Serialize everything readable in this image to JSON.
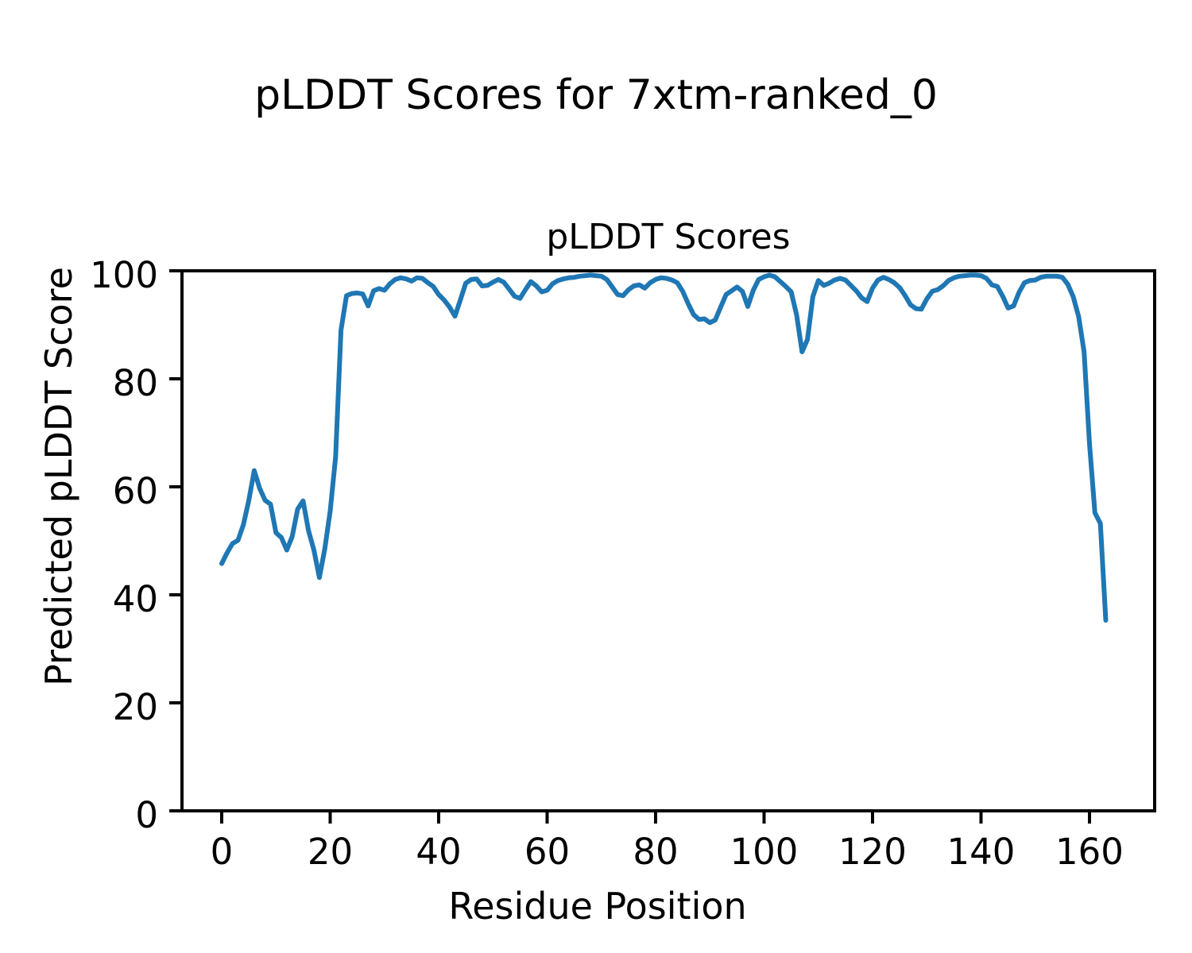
{
  "figure": {
    "suptitle": "pLDDT Scores for 7xtm-ranked_0",
    "axes_title": "pLDDT Scores",
    "xlabel": "Residue Position",
    "ylabel": "Predicted pLDDT Score"
  },
  "chart_data": {
    "type": "line",
    "title": "pLDDT Scores",
    "suptitle": "pLDDT Scores for 7xtm-ranked_0",
    "xlabel": "Residue Position",
    "ylabel": "Predicted pLDDT Score",
    "x_start": 0,
    "x_step": 1,
    "n_points": 164,
    "values": [
      45.8,
      47.8,
      49.5,
      50.1,
      53.0,
      57.5,
      63.0,
      59.7,
      57.5,
      56.8,
      51.5,
      50.6,
      48.3,
      50.8,
      55.9,
      57.4,
      51.9,
      48.3,
      43.2,
      48.5,
      55.5,
      65.5,
      89.0,
      95.4,
      95.8,
      95.9,
      95.7,
      93.5,
      96.3,
      96.7,
      96.4,
      97.6,
      98.4,
      98.7,
      98.5,
      98.1,
      98.7,
      98.6,
      97.8,
      97.1,
      95.6,
      94.6,
      93.3,
      91.6,
      94.6,
      97.7,
      98.4,
      98.5,
      97.2,
      97.3,
      97.9,
      98.4,
      97.9,
      96.6,
      95.3,
      94.9,
      96.5,
      98.0,
      97.2,
      96.1,
      96.4,
      97.6,
      98.2,
      98.5,
      98.7,
      98.8,
      99.0,
      99.1,
      99.2,
      99.1,
      99.0,
      98.4,
      97.0,
      95.6,
      95.4,
      96.5,
      97.2,
      97.4,
      96.8,
      97.8,
      98.4,
      98.7,
      98.6,
      98.3,
      97.8,
      96.2,
      93.9,
      91.9,
      91.0,
      91.1,
      90.4,
      90.9,
      93.3,
      95.6,
      96.3,
      97.0,
      96.2,
      93.4,
      96.4,
      98.4,
      98.9,
      99.2,
      98.9,
      98.0,
      97.1,
      96.1,
      91.8,
      85.0,
      87.3,
      95.2,
      98.2,
      97.3,
      97.7,
      98.3,
      98.6,
      98.3,
      97.3,
      96.3,
      95.0,
      94.3,
      96.8,
      98.3,
      98.8,
      98.4,
      97.8,
      96.9,
      95.4,
      93.7,
      93.0,
      92.9,
      94.8,
      96.2,
      96.5,
      97.2,
      98.2,
      98.7,
      99.0,
      99.1,
      99.2,
      99.2,
      99.1,
      98.6,
      97.4,
      97.1,
      95.3,
      93.1,
      93.5,
      96.0,
      97.8,
      98.2,
      98.3,
      98.8,
      99.0,
      99.0,
      99.0,
      98.8,
      97.5,
      95.2,
      91.5,
      85.0,
      68.0,
      55.2,
      53.2,
      35.3
    ],
    "xlim": [
      -7.3,
      172.0
    ],
    "ylim": [
      0,
      100
    ],
    "x_ticks": [
      0,
      20,
      40,
      60,
      80,
      100,
      120,
      140,
      160
    ],
    "y_ticks": [
      0,
      20,
      40,
      60,
      80,
      100
    ],
    "grid": false,
    "legend": null,
    "line_color": "#1f77b4",
    "axis_color": "#000000",
    "background_color": "#ffffff"
  }
}
